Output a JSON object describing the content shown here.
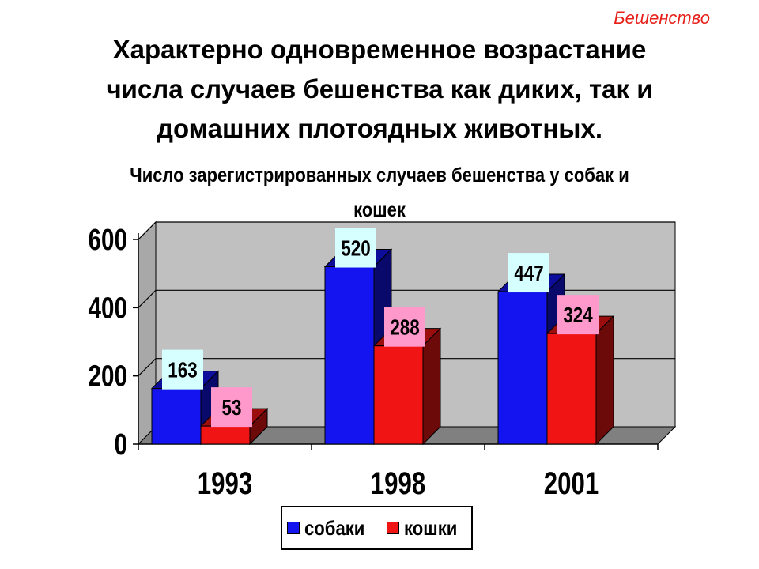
{
  "corner_label": "Бешенство",
  "slide_title": {
    "lines": [
      "Характерно одновременное возрастание",
      "числа случаев бешенства как диких, так и",
      "домашних плотоядных животных."
    ]
  },
  "colors": {
    "dogs": "#1414f0",
    "cats": "#f01414",
    "dogs_label_bg": "#d6ffff",
    "cats_label_bg": "#ff99cc",
    "wall": "#c0c0c0",
    "floor": "#808080",
    "corner_label": "#e8201a"
  },
  "chart_data": {
    "type": "bar",
    "style": "3d-clustered-column",
    "title": "Число зарегистрированных случаев бешенства у собак и кошек",
    "title_lines": [
      "Число зарегистрированных случаев бешенства у собак и",
      "кошек"
    ],
    "categories": [
      "1993",
      "1998",
      "2001"
    ],
    "series": [
      {
        "name": "собаки",
        "values": [
          163,
          520,
          447
        ]
      },
      {
        "name": "кошки",
        "values": [
          53,
          288,
          324
        ]
      }
    ],
    "ylim": [
      0,
      600
    ],
    "yticks": [
      "0",
      "200",
      "400",
      "600"
    ],
    "grid": true,
    "legend_position": "bottom",
    "data_labels": true
  }
}
